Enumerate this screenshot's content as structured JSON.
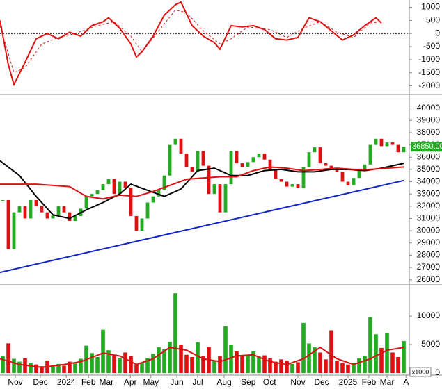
{
  "chart_data": [
    {
      "type": "line",
      "ylim": [
        -2250,
        1200
      ],
      "yticks": [
        1000,
        500,
        0,
        -500,
        -1000,
        -1500,
        -2000
      ],
      "xlim": [
        -0.5,
        73
      ],
      "zero_line": true,
      "series": [
        {
          "color": "#dd1111",
          "dash": false,
          "x": [
            -0.5,
            1,
            2,
            4,
            6,
            8,
            10,
            12,
            14,
            16,
            18,
            19,
            21,
            23,
            24,
            25,
            27,
            29,
            31,
            32,
            34,
            36,
            38,
            39,
            40,
            41,
            43,
            45,
            47,
            49,
            51,
            53,
            55,
            57,
            59,
            61,
            63,
            65,
            67,
            68
          ],
          "values": [
            500,
            -1200,
            -1950,
            -1100,
            -200,
            0,
            -200,
            50,
            -100,
            300,
            450,
            600,
            200,
            -400,
            -900,
            -700,
            -100,
            700,
            1100,
            1200,
            300,
            -100,
            -350,
            -600,
            -150,
            300,
            250,
            300,
            150,
            -200,
            -250,
            -150,
            600,
            450,
            100,
            -250,
            -50,
            300,
            600,
            400
          ]
        },
        {
          "color": "#dd1111",
          "dash": true,
          "x": [
            -0.5,
            2,
            4,
            7,
            10,
            13,
            17,
            20,
            23,
            25,
            28,
            31,
            33,
            36,
            39,
            41,
            44,
            48,
            51,
            54,
            57,
            60,
            63,
            66,
            68
          ],
          "values": [
            300,
            -1500,
            -1300,
            -400,
            -150,
            0,
            300,
            450,
            -100,
            -700,
            100,
            900,
            800,
            100,
            -400,
            -200,
            250,
            150,
            -150,
            200,
            450,
            50,
            -150,
            400,
            450
          ]
        }
      ]
    },
    {
      "type": "candlestick",
      "ylim": [
        25700,
        41000
      ],
      "yticks": [
        40000,
        39000,
        38000,
        37000,
        36000,
        35000,
        34000,
        33000,
        32000,
        31000,
        30000,
        29000,
        28000,
        27000,
        26000
      ],
      "xlim": [
        -0.5,
        73
      ],
      "color_up": "#22aa22",
      "color_down": "#dd1111",
      "values": [
        32500,
        28500,
        31500,
        32000,
        31000,
        32500,
        32000,
        31500,
        31000,
        31300,
        32000,
        31500,
        30800,
        31200,
        31800,
        32800,
        33000,
        33300,
        33800,
        34200,
        33000,
        34000,
        33500,
        31200,
        30000,
        31000,
        32300,
        32800,
        33300,
        34500,
        37000,
        37500,
        36300,
        35200,
        34800,
        36500,
        35300,
        33000,
        33800,
        31500,
        33800,
        36500,
        35500,
        35200,
        35600,
        36000,
        36300,
        35800,
        35000,
        34200,
        34000,
        33600,
        33800,
        33500,
        35200,
        36400,
        36800,
        35500,
        35300,
        35000,
        34800,
        34000,
        33700,
        34300,
        35000,
        35400,
        37000,
        37500,
        36900,
        37200,
        37000,
        36400,
        36850
      ],
      "last_price": {
        "value": 36850,
        "label": "36850.00"
      },
      "series": [
        {
          "color": "#000000",
          "x": [
            -0.5,
            3,
            6,
            9,
            12,
            15,
            18,
            21,
            23,
            26,
            29,
            32,
            35,
            38,
            41,
            44,
            47,
            50,
            53,
            56,
            59,
            62,
            65,
            68,
            72
          ],
          "values": [
            35700,
            34500,
            32800,
            31300,
            31000,
            31700,
            32300,
            33000,
            33800,
            33300,
            32800,
            33400,
            34900,
            35100,
            34500,
            34500,
            34900,
            35000,
            34800,
            34800,
            35000,
            35000,
            34900,
            35100,
            35500
          ]
        },
        {
          "color": "#dd1111",
          "x": [
            -0.5,
            6,
            12,
            15,
            18,
            21,
            24,
            27,
            30,
            33,
            36,
            39,
            42,
            45,
            48,
            51,
            54,
            57,
            60,
            63,
            66,
            69,
            72
          ],
          "values": [
            33800,
            33800,
            33600,
            32800,
            32600,
            32900,
            32800,
            33200,
            33700,
            34200,
            34300,
            34400,
            34400,
            34900,
            35200,
            35100,
            34900,
            35000,
            35100,
            35000,
            35000,
            35100,
            35200
          ]
        },
        {
          "color": "#1122cc",
          "x": [
            -0.5,
            72
          ],
          "values": [
            26600,
            34100
          ]
        }
      ]
    },
    {
      "type": "bar",
      "ylim": [
        0,
        15000
      ],
      "yticks": [
        10000,
        5000,
        0
      ],
      "xlim": [
        -0.5,
        73
      ],
      "unit_label": "x1000",
      "values": [
        3000,
        5200,
        2500,
        2000,
        2600,
        1800,
        1500,
        1200,
        2200,
        1400,
        1600,
        1300,
        2000,
        1700,
        2500,
        4800,
        3500,
        2800,
        7600,
        4000,
        3200,
        2600,
        3600,
        3000,
        1500,
        1800,
        2600,
        3400,
        4500,
        4200,
        5500,
        14000,
        5000,
        3200,
        2800,
        5400,
        3000,
        4600,
        2200,
        3000,
        8200,
        5000,
        3800,
        3000,
        3200,
        3800,
        2900,
        3100,
        2600,
        2000,
        2400,
        2200,
        1600,
        1900,
        8800,
        5200,
        4500,
        3600,
        2400,
        7500,
        2200,
        1800,
        1500,
        1800,
        2600,
        3000,
        9800,
        6800,
        4400,
        7000,
        3600,
        2800,
        5600
      ],
      "ma": {
        "color": "#dd1111",
        "x": [
          -0.5,
          3,
          7,
          11,
          14,
          18,
          21,
          24,
          27,
          30,
          33,
          36,
          39,
          42,
          45,
          48,
          51,
          54,
          57,
          60,
          63,
          66,
          69,
          72
        ],
        "values": [
          2500,
          1500,
          1000,
          1500,
          2000,
          3500,
          3000,
          1500,
          2500,
          4500,
          4000,
          2500,
          2000,
          3000,
          3200,
          2000,
          1500,
          2500,
          4500,
          2500,
          1500,
          2500,
          4000,
          4500
        ]
      },
      "xticks": [
        {
          "value": 2.25,
          "label": "Nov"
        },
        {
          "value": 6.75,
          "label": "Dec"
        },
        {
          "value": 11.4,
          "label": "2024"
        },
        {
          "value": 15.4,
          "label": "Feb"
        },
        {
          "value": 18.6,
          "label": "Mar"
        },
        {
          "value": 22.9,
          "label": "Apr"
        },
        {
          "value": 26.6,
          "label": "May"
        },
        {
          "value": 31.25,
          "label": "Jun"
        },
        {
          "value": 35,
          "label": "Jul"
        },
        {
          "value": 39.75,
          "label": "Aug"
        },
        {
          "value": 44.1,
          "label": "Sep"
        },
        {
          "value": 47.9,
          "label": "Oct"
        },
        {
          "value": 53,
          "label": "Nov"
        },
        {
          "value": 57.25,
          "label": "Dec"
        },
        {
          "value": 62,
          "label": "2025"
        },
        {
          "value": 65.75,
          "label": "Feb"
        },
        {
          "value": 69,
          "label": "Mar"
        },
        {
          "value": 72.4,
          "label": "A"
        }
      ]
    }
  ]
}
